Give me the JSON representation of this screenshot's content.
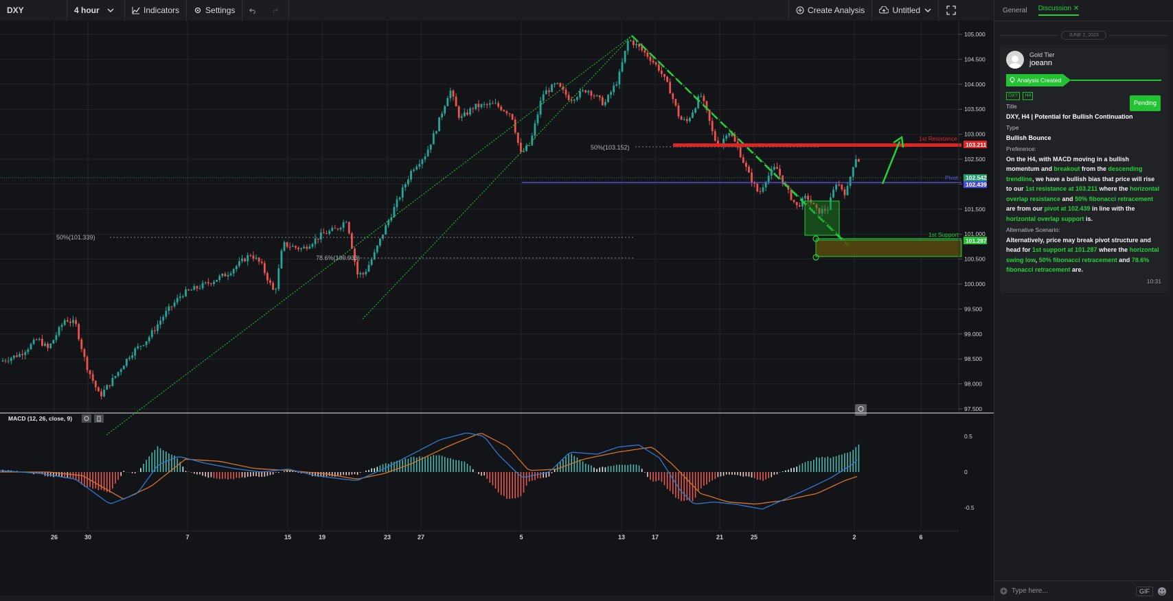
{
  "toolbar": {
    "symbol": "DXY",
    "interval": "4 hour",
    "indicators_label": "Indicators",
    "settings_label": "Settings",
    "create_analysis_label": "Create Analysis",
    "layout_name": "Untitled"
  },
  "chart": {
    "price_labels": [
      "105.000",
      "104.500",
      "104.000",
      "103.500",
      "103.000",
      "102.500",
      "102.000",
      "101.500",
      "101.000",
      "100.500",
      "100.000",
      "99.500",
      "99.000",
      "98.500",
      "98.000",
      "97.500"
    ],
    "date_labels": [
      "26",
      "30",
      "7",
      "15",
      "19",
      "23",
      "27",
      "5",
      "13",
      "17",
      "21",
      "25",
      "2",
      "6"
    ],
    "fib_label_1": "50%(103.152)",
    "fib_label_2": "50%(101.339)",
    "fib_label_3": "78.6%(100.933)",
    "resistance_label": "1st Resistance",
    "resistance_value": "103.211",
    "pivot_label": "Pivot",
    "pivot_value_1": "102.542",
    "pivot_value_2": "102.439",
    "support_label": "1st Support",
    "support_value": "101.287",
    "macd_label": "MACD (12, 26, close, 9)",
    "macd_labels": [
      "0.5",
      "0",
      "-0.5"
    ],
    "colors": {
      "up": "#26a69a",
      "down": "#ef5350",
      "accent_green": "#22d13a",
      "resistance": "#e02424",
      "pivot": "#5a5ae6",
      "macd": "#2f7bd1",
      "signal": "#d9722a"
    }
  },
  "panel": {
    "tab_general": "General",
    "tab_discussion": "Discussion",
    "date_chip": "JUNE 2, 2023",
    "tier": "Gold Tier",
    "username": "joeann",
    "status": "Analysis Created",
    "tag_symbol": "DXY",
    "tag_tf": "H4",
    "pending": "Pending",
    "title_label": "Title",
    "title_value": "DXY, H4 | Potential for Bullish Continuation",
    "type_label": "Type",
    "type_value": "Bullish Bounce",
    "preference_label": "Preference:",
    "pref": {
      "p1": "On the H4, with MACD moving in a bullish momentum and ",
      "p2": "breakout",
      "p3": " from the ",
      "p4": "descending trendline",
      "p5": ", we have a bullish bias that price will rise to our ",
      "p6": "1st resistance at 103.211",
      "p7": " where the ",
      "p8": "horizontal overlap resistance",
      "p9": " and ",
      "p10": "50% fibonacci retracement",
      "p11": " are from our ",
      "p12": "pivot at 102.439",
      "p13": " in line with the ",
      "p14": "horizontal overlap support",
      "p15": " is."
    },
    "alt_label": "Alternative Scenario:",
    "alt": {
      "a1": "Alternatively, price may break pivot structure and head for ",
      "a2": "1st support at 101.287",
      "a3": " where the ",
      "a4": "horizontal swing low",
      "a5": ", ",
      "a6": "50% fibonacci retracement",
      "a7": " and ",
      "a8": "78.6% fibonacci retracement",
      "a9": " are."
    },
    "time": "10:31",
    "composer_placeholder": "Type here...",
    "gif_label": "GIF"
  }
}
